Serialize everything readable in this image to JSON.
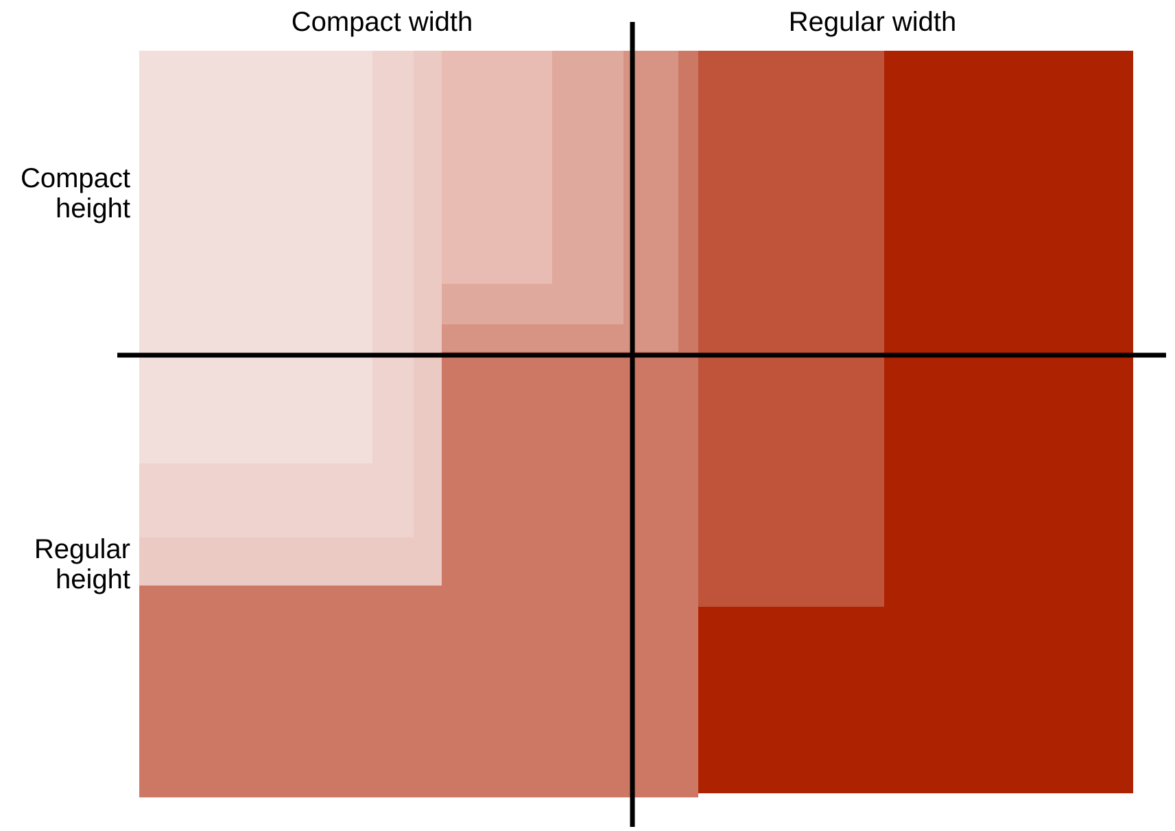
{
  "columns": {
    "compact": "Compact width",
    "regular": "Regular width"
  },
  "rows": {
    "compact": {
      "line1": "Compact",
      "line2": "height"
    },
    "regular": {
      "line1": "Regular",
      "line2": "height"
    }
  },
  "colors": {
    "axis": "#000000",
    "background": "#ffffff",
    "shades": [
      "#f2dfdc",
      "#efd3cf",
      "#ebcac3",
      "#e8bcb2",
      "#dfa99d",
      "#d79485",
      "#cc7864",
      "#c0543a",
      "#ad2200"
    ]
  }
}
